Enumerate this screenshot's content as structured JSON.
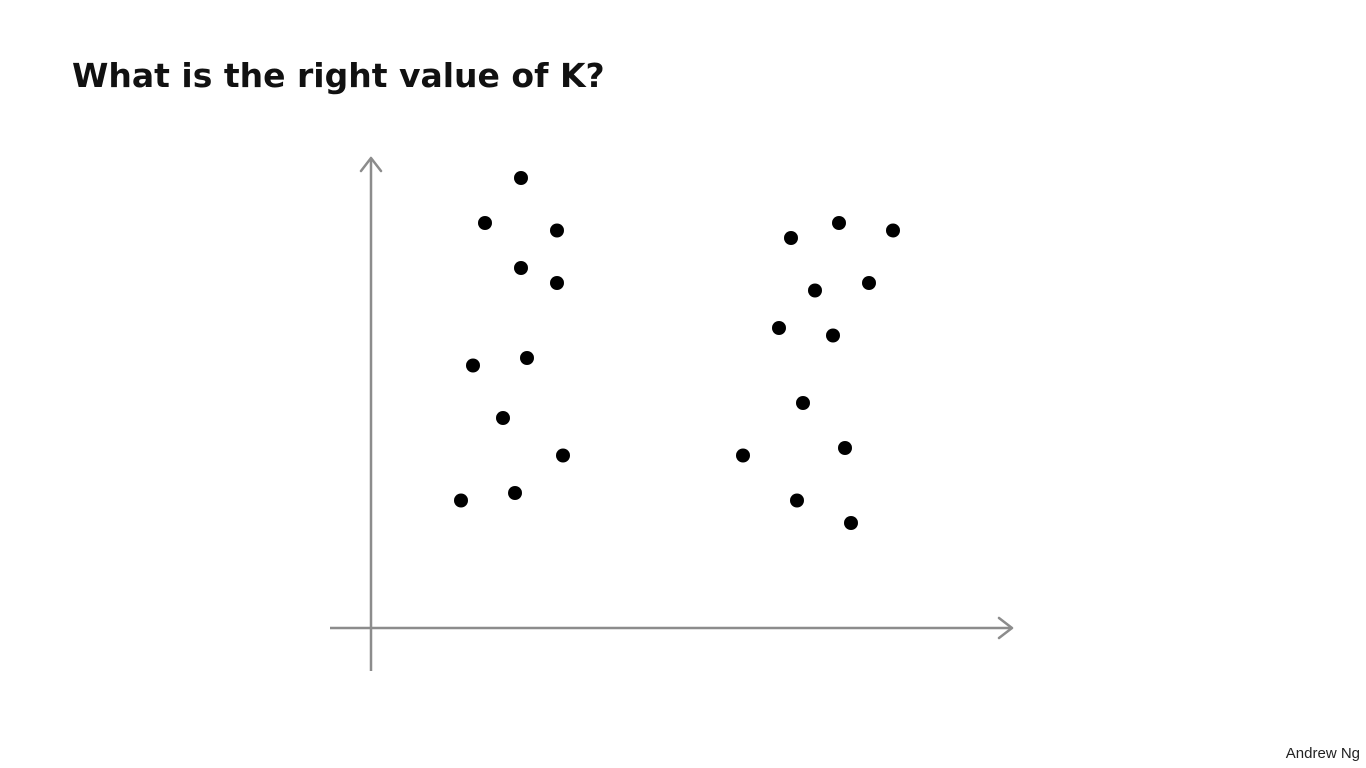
{
  "slide": {
    "title": "What is the right value of K?",
    "author": "Andrew Ng"
  },
  "chart_data": {
    "type": "scatter",
    "title": "",
    "xlabel": "",
    "ylabel": "",
    "xlim": [
      0,
      10
    ],
    "ylim": [
      0,
      7
    ],
    "grid": false,
    "legend": "none",
    "axis_color": "#8c8c8c",
    "point_color": "#000000",
    "series": [
      {
        "points": [
          {
            "x": 2.5,
            "y": 6.0
          },
          {
            "x": 1.9,
            "y": 5.4
          },
          {
            "x": 3.1,
            "y": 5.3
          },
          {
            "x": 2.5,
            "y": 4.8
          },
          {
            "x": 3.1,
            "y": 4.6
          },
          {
            "x": 1.7,
            "y": 3.5
          },
          {
            "x": 2.6,
            "y": 3.6
          },
          {
            "x": 2.2,
            "y": 2.8
          },
          {
            "x": 3.2,
            "y": 2.3
          },
          {
            "x": 1.5,
            "y": 1.7
          },
          {
            "x": 2.4,
            "y": 1.8
          },
          {
            "x": 7.0,
            "y": 5.2
          },
          {
            "x": 7.8,
            "y": 5.4
          },
          {
            "x": 8.7,
            "y": 5.3
          },
          {
            "x": 7.4,
            "y": 4.5
          },
          {
            "x": 8.3,
            "y": 4.6
          },
          {
            "x": 6.8,
            "y": 4.0
          },
          {
            "x": 7.7,
            "y": 3.9
          },
          {
            "x": 7.2,
            "y": 3.0
          },
          {
            "x": 6.2,
            "y": 2.3
          },
          {
            "x": 7.9,
            "y": 2.4
          },
          {
            "x": 7.1,
            "y": 1.7
          },
          {
            "x": 8.0,
            "y": 1.4
          }
        ]
      }
    ]
  }
}
